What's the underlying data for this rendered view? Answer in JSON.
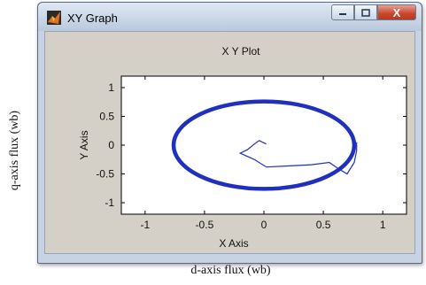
{
  "figure": {
    "xlabel": "d-axis flux (wb)",
    "ylabel": "q-axis flux (wb)"
  },
  "window": {
    "title": "XY Graph",
    "minimize_icon": "minimize-icon",
    "maximize_icon": "maximize-icon",
    "close_icon": "close-icon",
    "close_glyph": "X"
  },
  "chart_data": {
    "type": "line",
    "title": "X Y Plot",
    "xlabel": "X Axis",
    "ylabel": "Y Axis",
    "xlim": [
      -1.2,
      1.2
    ],
    "ylim": [
      -1.2,
      1.2
    ],
    "xticks": [
      -1,
      -0.5,
      0,
      0.5,
      1
    ],
    "yticks": [
      1,
      0.5,
      0,
      -0.5,
      -1
    ],
    "grid": false,
    "line_color": "#1f2fbf",
    "series": [
      {
        "values": [
          [
            0.02,
            0.02
          ],
          [
            -0.04,
            0.08
          ],
          [
            -0.08,
            0.02
          ],
          [
            -0.14,
            -0.08
          ],
          [
            -0.2,
            -0.14
          ],
          [
            -0.08,
            -0.25
          ],
          [
            0.02,
            -0.38
          ],
          [
            0.22,
            -0.36
          ],
          [
            0.4,
            -0.34
          ],
          [
            0.55,
            -0.3
          ],
          [
            0.62,
            -0.4
          ],
          [
            0.7,
            -0.5
          ],
          [
            0.76,
            -0.3
          ],
          [
            0.78,
            -0.1
          ],
          [
            0.78,
            0.05
          ]
        ]
      },
      {
        "circle": {
          "cx": 0,
          "cy": 0,
          "rx": 0.76,
          "ry": 0.76
        }
      }
    ]
  }
}
